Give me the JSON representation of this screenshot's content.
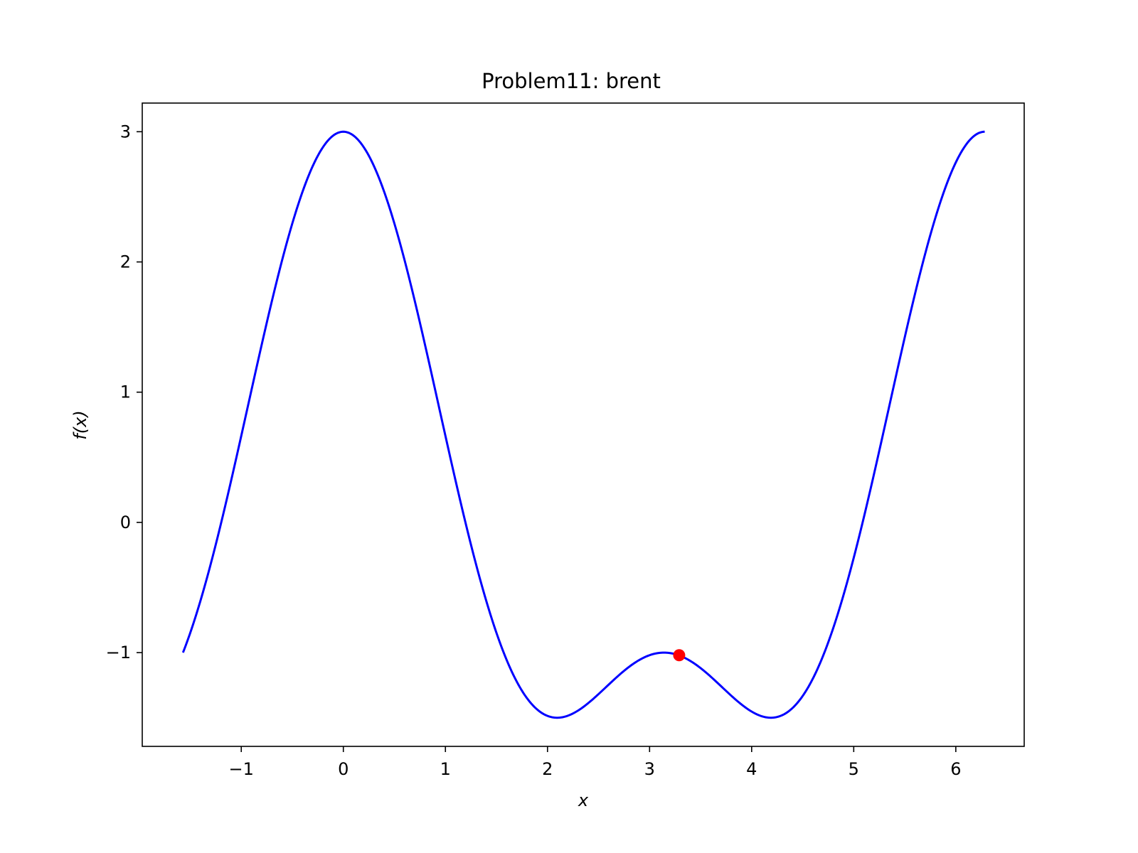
{
  "chart_data": {
    "type": "line",
    "title": "Problem11: brent",
    "xlabel": "x",
    "ylabel": "f(x)",
    "xlim": [
      -1.97,
      6.67
    ],
    "ylim": [
      -1.72,
      3.22
    ],
    "xticks": [
      -1,
      0,
      1,
      2,
      3,
      4,
      5,
      6
    ],
    "xtick_labels": [
      "−1",
      "0",
      "1",
      "2",
      "3",
      "4",
      "5",
      "6"
    ],
    "yticks": [
      -1,
      0,
      1,
      2,
      3
    ],
    "ytick_labels": [
      "−1",
      "0",
      "1",
      "2",
      "3"
    ],
    "grid": false,
    "series": [
      {
        "function": "2cos(x) + cos(2x)",
        "x_range": [
          -1.5708,
          6.2832
        ],
        "color": "#0000ff"
      },
      {
        "type": "scatter",
        "x": [
          3.29
        ],
        "y": [
          -1.02
        ],
        "color": "#ff0000"
      }
    ]
  }
}
